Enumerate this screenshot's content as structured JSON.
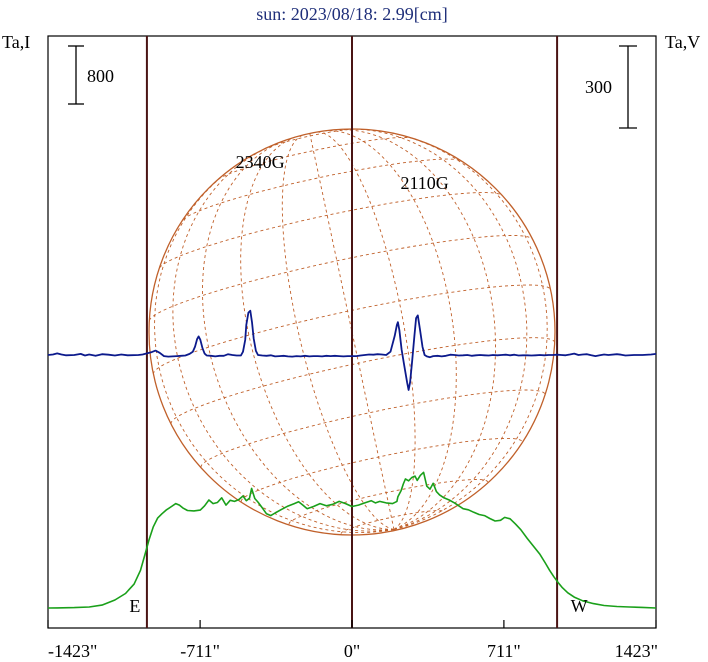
{
  "chart_data": {
    "type": "line",
    "title": "sun: 2023/08/18: 2.99[cm]",
    "left_axis_label": "Ta,I",
    "right_axis_label": "Ta,V",
    "left_scale_bar": {
      "value": 800,
      "label": "800"
    },
    "right_scale_bar": {
      "value": 300,
      "label": "300"
    },
    "x_ticks": [
      {
        "value": -1423,
        "label": "-1423\""
      },
      {
        "value": -711,
        "label": "-711\""
      },
      {
        "value": 0,
        "label": "0\""
      },
      {
        "value": 711,
        "label": "711\""
      },
      {
        "value": 1423,
        "label": "1423\""
      }
    ],
    "xlim": [
      -1423,
      1423
    ],
    "limb_markers": [
      {
        "x": -960,
        "label": "E"
      },
      {
        "x": 0,
        "label": ""
      },
      {
        "x": 960,
        "label": "W"
      }
    ],
    "annotations": [
      {
        "text": "2340G",
        "x": -430
      },
      {
        "text": "2110G",
        "x": 340
      }
    ],
    "colors": {
      "title": "#1f2f7a",
      "intensity": "#1aa01a",
      "polarization": "#0c1a8c",
      "limb_lines": "#4a1414",
      "disk": "#c0602a",
      "frame": "#000000"
    },
    "series": [
      {
        "name": "Ta,I",
        "color": "#1aa01a",
        "points": [
          [
            -1423,
            0
          ],
          [
            -1380,
            2
          ],
          [
            -1300,
            6
          ],
          [
            -1230,
            14
          ],
          [
            -1170,
            40
          ],
          [
            -1110,
            110
          ],
          [
            -1060,
            200
          ],
          [
            -1020,
            330
          ],
          [
            -990,
            520
          ],
          [
            -970,
            730
          ],
          [
            -950,
            940
          ],
          [
            -930,
            1120
          ],
          [
            -910,
            1240
          ],
          [
            -890,
            1300
          ],
          [
            -870,
            1350
          ],
          [
            -845,
            1400
          ],
          [
            -825,
            1440
          ],
          [
            -808,
            1420
          ],
          [
            -792,
            1380
          ],
          [
            -770,
            1345
          ],
          [
            -740,
            1340
          ],
          [
            -710,
            1350
          ],
          [
            -690,
            1410
          ],
          [
            -670,
            1490
          ],
          [
            -650,
            1440
          ],
          [
            -630,
            1455
          ],
          [
            -610,
            1520
          ],
          [
            -590,
            1420
          ],
          [
            -570,
            1485
          ],
          [
            -550,
            1470
          ],
          [
            -530,
            1495
          ],
          [
            -510,
            1545
          ],
          [
            -495,
            1480
          ],
          [
            -480,
            1515
          ],
          [
            -470,
            1650
          ],
          [
            -455,
            1510
          ],
          [
            -440,
            1460
          ],
          [
            -420,
            1380
          ],
          [
            -400,
            1300
          ],
          [
            -380,
            1275
          ],
          [
            -360,
            1310
          ],
          [
            -330,
            1360
          ],
          [
            -300,
            1405
          ],
          [
            -270,
            1440
          ],
          [
            -250,
            1465
          ],
          [
            -230,
            1420
          ],
          [
            -210,
            1370
          ],
          [
            -180,
            1400
          ],
          [
            -150,
            1440
          ],
          [
            -120,
            1410
          ],
          [
            -90,
            1430
          ],
          [
            -60,
            1470
          ],
          [
            -30,
            1440
          ],
          [
            0,
            1400
          ],
          [
            30,
            1420
          ],
          [
            60,
            1450
          ],
          [
            90,
            1480
          ],
          [
            110,
            1450
          ],
          [
            130,
            1470
          ],
          [
            160,
            1450
          ],
          [
            190,
            1440
          ],
          [
            210,
            1470
          ],
          [
            215,
            1535
          ],
          [
            230,
            1620
          ],
          [
            240,
            1710
          ],
          [
            250,
            1780
          ],
          [
            265,
            1755
          ],
          [
            280,
            1800
          ],
          [
            295,
            1820
          ],
          [
            305,
            1760
          ],
          [
            320,
            1830
          ],
          [
            335,
            1870
          ],
          [
            350,
            1680
          ],
          [
            365,
            1640
          ],
          [
            380,
            1720
          ],
          [
            395,
            1605
          ],
          [
            410,
            1560
          ],
          [
            430,
            1520
          ],
          [
            455,
            1490
          ],
          [
            480,
            1450
          ],
          [
            500,
            1410
          ],
          [
            520,
            1370
          ],
          [
            545,
            1355
          ],
          [
            570,
            1320
          ],
          [
            595,
            1290
          ],
          [
            620,
            1275
          ],
          [
            645,
            1235
          ],
          [
            670,
            1200
          ],
          [
            695,
            1210
          ],
          [
            715,
            1250
          ],
          [
            740,
            1230
          ],
          [
            765,
            1160
          ],
          [
            790,
            1080
          ],
          [
            820,
            960
          ],
          [
            850,
            850
          ],
          [
            880,
            740
          ],
          [
            905,
            620
          ],
          [
            925,
            520
          ],
          [
            945,
            430
          ],
          [
            965,
            350
          ],
          [
            985,
            280
          ],
          [
            1010,
            210
          ],
          [
            1040,
            150
          ],
          [
            1080,
            100
          ],
          [
            1130,
            60
          ],
          [
            1180,
            34
          ],
          [
            1240,
            20
          ],
          [
            1300,
            14
          ],
          [
            1360,
            8
          ],
          [
            1423,
            0
          ]
        ]
      },
      {
        "name": "Ta,V",
        "color": "#0c1a8c",
        "points": [
          [
            -1423,
            0
          ],
          [
            -1400,
            2
          ],
          [
            -1380,
            6
          ],
          [
            -1360,
            2
          ],
          [
            -1340,
            -1
          ],
          [
            -1300,
            0
          ],
          [
            -1270,
            4
          ],
          [
            -1250,
            -2
          ],
          [
            -1230,
            2
          ],
          [
            -1200,
            -3
          ],
          [
            -1170,
            3
          ],
          [
            -1140,
            1
          ],
          [
            -1110,
            -2
          ],
          [
            -1080,
            2
          ],
          [
            -1050,
            -1
          ],
          [
            -1000,
            0
          ],
          [
            -980,
            2
          ],
          [
            -960,
            6
          ],
          [
            -940,
            10
          ],
          [
            -920,
            16
          ],
          [
            -900,
            8
          ],
          [
            -880,
            -4
          ],
          [
            -860,
            -6
          ],
          [
            -840,
            -5
          ],
          [
            -820,
            -4
          ],
          [
            -800,
            -3
          ],
          [
            -780,
            -2
          ],
          [
            -760,
            4
          ],
          [
            -745,
            12
          ],
          [
            -735,
            30
          ],
          [
            -725,
            58
          ],
          [
            -718,
            68
          ],
          [
            -710,
            56
          ],
          [
            -700,
            25
          ],
          [
            -690,
            5
          ],
          [
            -680,
            -2
          ],
          [
            -660,
            -3
          ],
          [
            -640,
            -5
          ],
          [
            -620,
            -3
          ],
          [
            -600,
            -3
          ],
          [
            -580,
            3
          ],
          [
            -560,
            0
          ],
          [
            -540,
            -2
          ],
          [
            -520,
            -2
          ],
          [
            -510,
            12
          ],
          [
            -500,
            55
          ],
          [
            -495,
            110
          ],
          [
            -485,
            155
          ],
          [
            -476,
            162
          ],
          [
            -468,
            120
          ],
          [
            -460,
            60
          ],
          [
            -450,
            15
          ],
          [
            -440,
            0
          ],
          [
            -420,
            -2
          ],
          [
            -400,
            -3
          ],
          [
            -380,
            -1
          ],
          [
            -360,
            -5
          ],
          [
            -340,
            -4
          ],
          [
            -320,
            -3
          ],
          [
            -300,
            -5
          ],
          [
            -280,
            -6
          ],
          [
            -260,
            -4
          ],
          [
            -240,
            -5
          ],
          [
            -220,
            -3
          ],
          [
            -200,
            -5
          ],
          [
            -180,
            -4
          ],
          [
            -160,
            -4
          ],
          [
            -140,
            -5
          ],
          [
            -120,
            -3
          ],
          [
            -100,
            -4
          ],
          [
            -80,
            -3
          ],
          [
            -60,
            -4
          ],
          [
            -40,
            -5
          ],
          [
            -20,
            -4
          ],
          [
            0,
            -4
          ],
          [
            20,
            -4
          ],
          [
            40,
            -2
          ],
          [
            60,
            0
          ],
          [
            80,
            2
          ],
          [
            100,
            1
          ],
          [
            120,
            3
          ],
          [
            140,
            2
          ],
          [
            160,
            0
          ],
          [
            180,
            12
          ],
          [
            200,
            70
          ],
          [
            210,
            110
          ],
          [
            215,
            120
          ],
          [
            222,
            90
          ],
          [
            232,
            20
          ],
          [
            245,
            -40
          ],
          [
            258,
            -100
          ],
          [
            265,
            -128
          ],
          [
            272,
            -100
          ],
          [
            282,
            -20
          ],
          [
            292,
            70
          ],
          [
            300,
            135
          ],
          [
            308,
            145
          ],
          [
            318,
            95
          ],
          [
            330,
            30
          ],
          [
            340,
            0
          ],
          [
            350,
            -5
          ],
          [
            365,
            -8
          ],
          [
            380,
            -4
          ],
          [
            400,
            -3
          ],
          [
            420,
            -5
          ],
          [
            440,
            -3
          ],
          [
            460,
            1
          ],
          [
            480,
            0
          ],
          [
            500,
            -2
          ],
          [
            520,
            -1
          ],
          [
            540,
            0
          ],
          [
            560,
            -3
          ],
          [
            580,
            -1
          ],
          [
            600,
            0
          ],
          [
            620,
            -1
          ],
          [
            640,
            -2
          ],
          [
            660,
            0
          ],
          [
            680,
            -1
          ],
          [
            700,
            0
          ],
          [
            720,
            1
          ],
          [
            740,
            -1
          ],
          [
            760,
            1
          ],
          [
            780,
            -2
          ],
          [
            800,
            -1
          ],
          [
            820,
            -1
          ],
          [
            840,
            -2
          ],
          [
            860,
            -1
          ],
          [
            880,
            0
          ],
          [
            900,
            -1
          ],
          [
            920,
            0
          ],
          [
            940,
            0
          ],
          [
            960,
            1
          ],
          [
            980,
            0
          ],
          [
            1000,
            -1
          ],
          [
            1020,
            2
          ],
          [
            1040,
            5
          ],
          [
            1060,
            0
          ],
          [
            1080,
            2
          ],
          [
            1100,
            3
          ],
          [
            1120,
            -1
          ],
          [
            1140,
            -4
          ],
          [
            1160,
            -1
          ],
          [
            1180,
            2
          ],
          [
            1200,
            0
          ],
          [
            1240,
            3
          ],
          [
            1260,
            1
          ],
          [
            1280,
            -2
          ],
          [
            1320,
            0
          ],
          [
            1360,
            0
          ],
          [
            1400,
            2
          ],
          [
            1423,
            4
          ]
        ]
      }
    ]
  }
}
